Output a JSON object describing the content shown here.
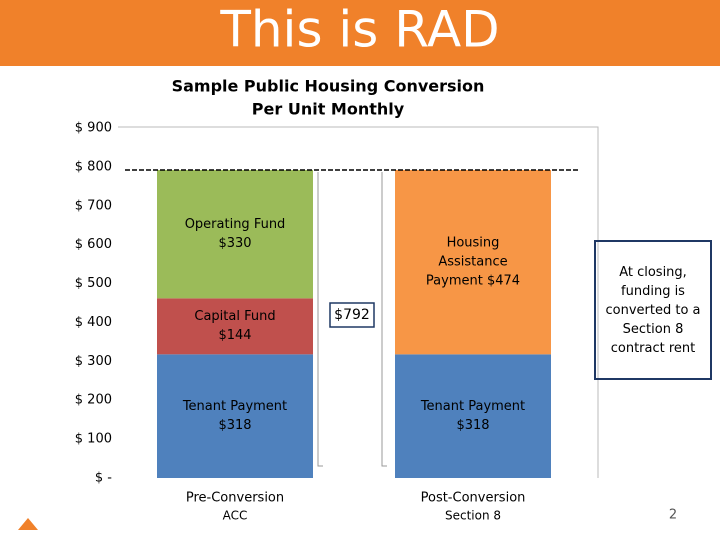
{
  "header": {
    "title": "This is RAD"
  },
  "chart_data": {
    "type": "stacked_bar",
    "title": [
      "Sample Public Housing Conversion",
      "Per Unit Monthly"
    ],
    "categories": [
      "Pre-Conversion",
      "Post-Conversion"
    ],
    "subcategories": [
      "ACC",
      "Section 8"
    ],
    "series": [
      {
        "color": "#4f81bd",
        "values": [
          318,
          318
        ],
        "value_labels": [
          "Tenant Payment  $318",
          "Tenant Payment  $318"
        ]
      },
      {
        "color": "#c0504d",
        "values": [
          144,
          null
        ],
        "value_labels": [
          "Capital Fund $144",
          null
        ]
      },
      {
        "color": "#9bbb59",
        "values": [
          330,
          null
        ],
        "value_labels": [
          "Operating Fund  $330",
          null
        ]
      },
      {
        "color": "#f79646",
        "values": [
          null,
          474
        ],
        "value_labels": [
          null,
          "Housing Assistance Payment $474"
        ]
      }
    ],
    "reference_line": {
      "value": 792,
      "label": "$792"
    },
    "ylim": [
      0,
      900
    ],
    "yticks": [
      {
        "value": 0,
        "label": "$ -"
      },
      {
        "value": 100,
        "label": "$ 100"
      },
      {
        "value": 200,
        "label": "$ 200"
      },
      {
        "value": 300,
        "label": "$ 300"
      },
      {
        "value": 400,
        "label": "$ 400"
      },
      {
        "value": 500,
        "label": "$ 500"
      },
      {
        "value": 600,
        "label": "$ 600"
      },
      {
        "value": 700,
        "label": "$ 700"
      },
      {
        "value": 800,
        "label": "$ 800"
      },
      {
        "value": 900,
        "label": "$ 900"
      }
    ],
    "grid": false
  },
  "callout": "At closing, funding is converted to a Section 8 contract rent",
  "page_number": "2"
}
